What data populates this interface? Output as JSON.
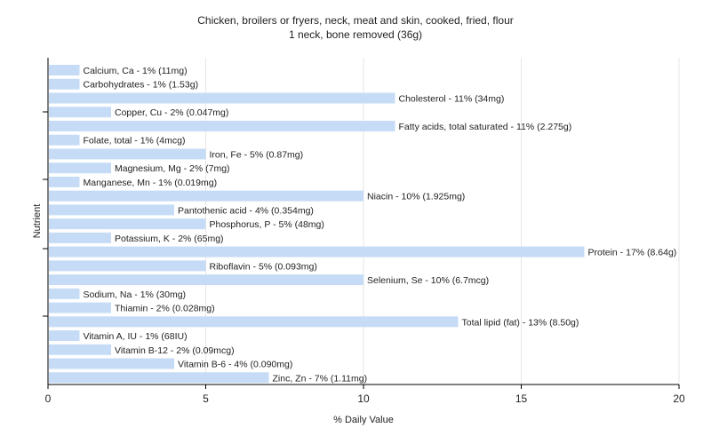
{
  "chart_data": {
    "type": "bar",
    "orientation": "horizontal",
    "title": "Chicken, broilers or fryers, neck, meat and skin, cooked, fried, flour",
    "subtitle": "1 neck, bone removed (36g)",
    "xlabel": "% Daily Value",
    "ylabel": "Nutrient",
    "xlim": [
      0,
      20
    ],
    "xticks": [
      0,
      5,
      10,
      15,
      20
    ],
    "grid": true,
    "bar_color": "#c6dcf6",
    "bars": [
      {
        "label": "Calcium, Ca - 1% (11mg)",
        "value": 1
      },
      {
        "label": "Carbohydrates - 1% (1.53g)",
        "value": 1
      },
      {
        "label": "Cholesterol - 11% (34mg)",
        "value": 11
      },
      {
        "label": "Copper, Cu - 2% (0.047mg)",
        "value": 2
      },
      {
        "label": "Fatty acids, total saturated - 11% (2.275g)",
        "value": 11
      },
      {
        "label": "Folate, total - 1% (4mcg)",
        "value": 1
      },
      {
        "label": "Iron, Fe - 5% (0.87mg)",
        "value": 5
      },
      {
        "label": "Magnesium, Mg - 2% (7mg)",
        "value": 2
      },
      {
        "label": "Manganese, Mn - 1% (0.019mg)",
        "value": 1
      },
      {
        "label": "Niacin - 10% (1.925mg)",
        "value": 10
      },
      {
        "label": "Pantothenic acid - 4% (0.354mg)",
        "value": 4
      },
      {
        "label": "Phosphorus, P - 5% (48mg)",
        "value": 5
      },
      {
        "label": "Potassium, K - 2% (65mg)",
        "value": 2
      },
      {
        "label": "Protein - 17% (8.64g)",
        "value": 17
      },
      {
        "label": "Riboflavin - 5% (0.093mg)",
        "value": 5
      },
      {
        "label": "Selenium, Se - 10% (6.7mcg)",
        "value": 10
      },
      {
        "label": "Sodium, Na - 1% (30mg)",
        "value": 1
      },
      {
        "label": "Thiamin - 2% (0.028mg)",
        "value": 2
      },
      {
        "label": "Total lipid (fat) - 13% (8.50g)",
        "value": 13
      },
      {
        "label": "Vitamin A, IU - 1% (68IU)",
        "value": 1
      },
      {
        "label": "Vitamin B-12 - 2% (0.09mcg)",
        "value": 2
      },
      {
        "label": "Vitamin B-6 - 4% (0.090mg)",
        "value": 4
      },
      {
        "label": "Zinc, Zn - 7% (1.11mg)",
        "value": 7
      }
    ]
  }
}
